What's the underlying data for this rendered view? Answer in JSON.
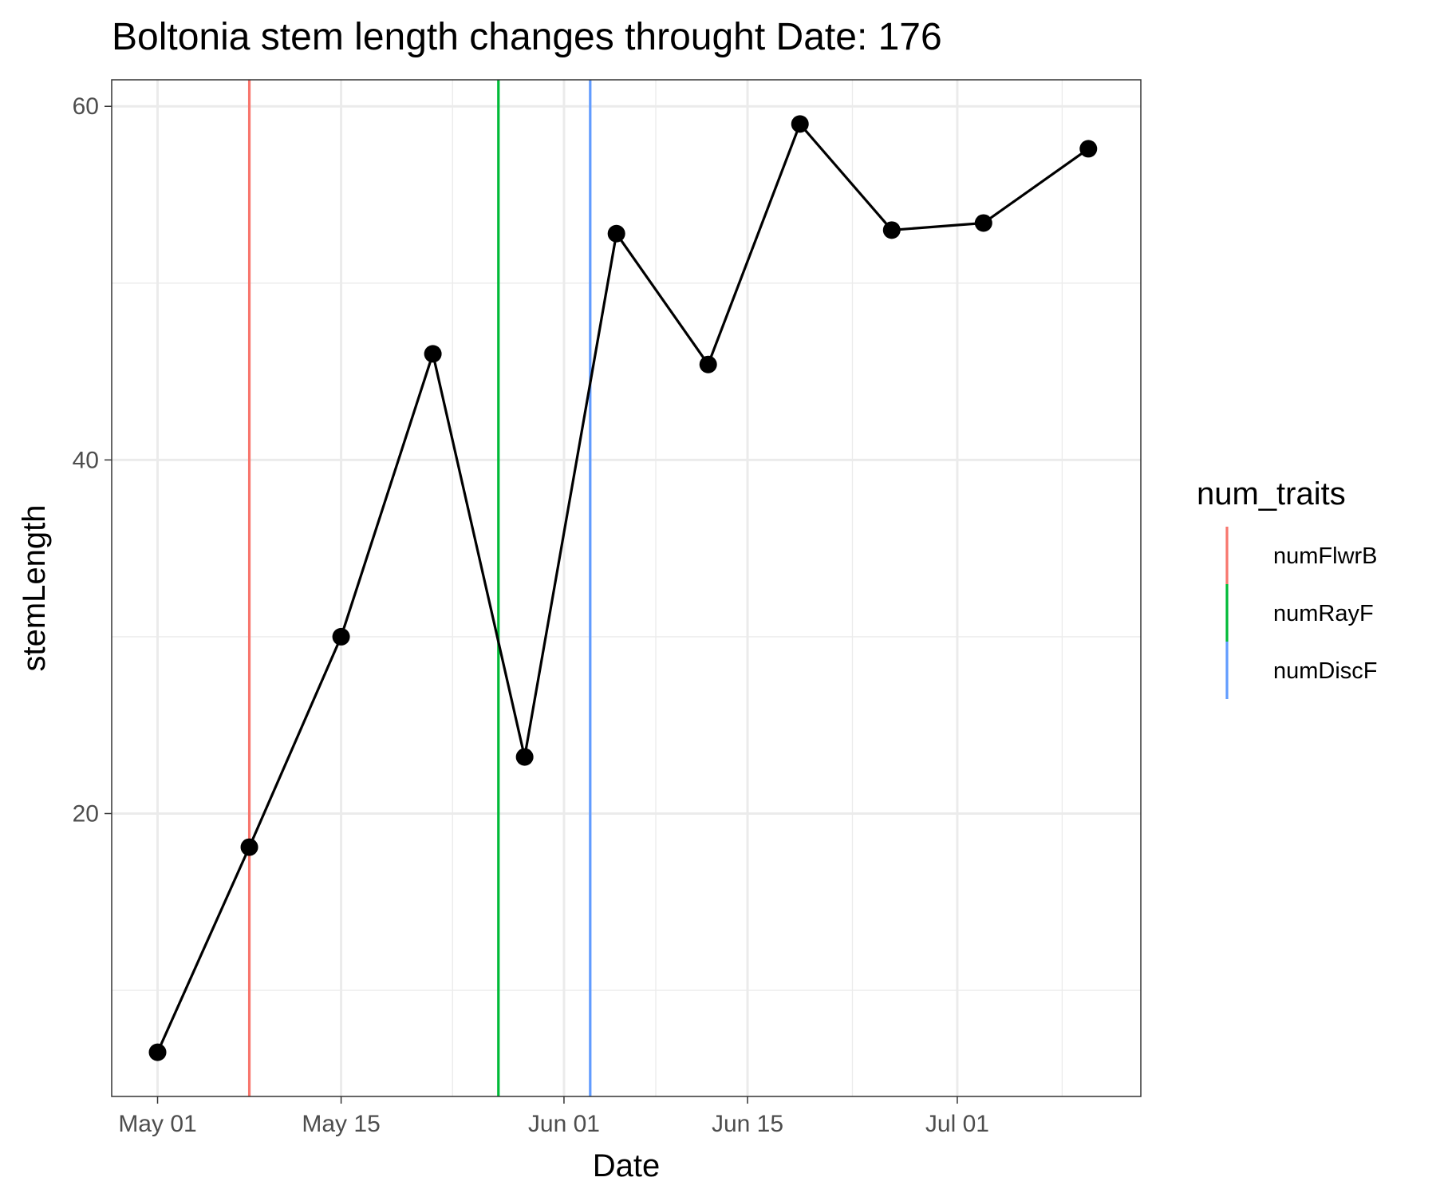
{
  "chart_data": {
    "type": "line",
    "title": "Boltonia stem length changes throught Date:  176",
    "xlabel": "Date",
    "ylabel": "stemLength",
    "x_ticks": [
      {
        "day": 0,
        "label": "May 01"
      },
      {
        "day": 14,
        "label": "May 15"
      },
      {
        "day": 31,
        "label": "Jun 01"
      },
      {
        "day": 45,
        "label": "Jun 15"
      },
      {
        "day": 61,
        "label": "Jul 01"
      }
    ],
    "y_ticks": [
      20,
      40,
      60
    ],
    "xlim": [
      -3.5,
      75
    ],
    "ylim": [
      4,
      61.5
    ],
    "series": [
      {
        "name": "stemLength",
        "color": "#000000",
        "points": [
          {
            "day": 0,
            "value": 6.5
          },
          {
            "day": 7,
            "value": 18.1
          },
          {
            "day": 14,
            "value": 30.0
          },
          {
            "day": 21,
            "value": 46.0
          },
          {
            "day": 28,
            "value": 23.2
          },
          {
            "day": 35,
            "value": 52.8
          },
          {
            "day": 42,
            "value": 45.4
          },
          {
            "day": 49,
            "value": 59.0
          },
          {
            "day": 56,
            "value": 53.0
          },
          {
            "day": 63,
            "value": 53.4
          },
          {
            "day": 71,
            "value": 57.6
          }
        ]
      }
    ],
    "vlines": [
      {
        "name": "numFlwrB",
        "day": 7,
        "color": "#F8766D"
      },
      {
        "name": "numRayF",
        "day": 26,
        "color": "#00BA38"
      },
      {
        "name": "numDiscF",
        "day": 33,
        "color": "#619CFF"
      }
    ],
    "legend": {
      "title": "num_traits",
      "position": "right",
      "entries": [
        "numFlwrB",
        "numRayF",
        "numDiscF"
      ]
    },
    "grid": true
  }
}
